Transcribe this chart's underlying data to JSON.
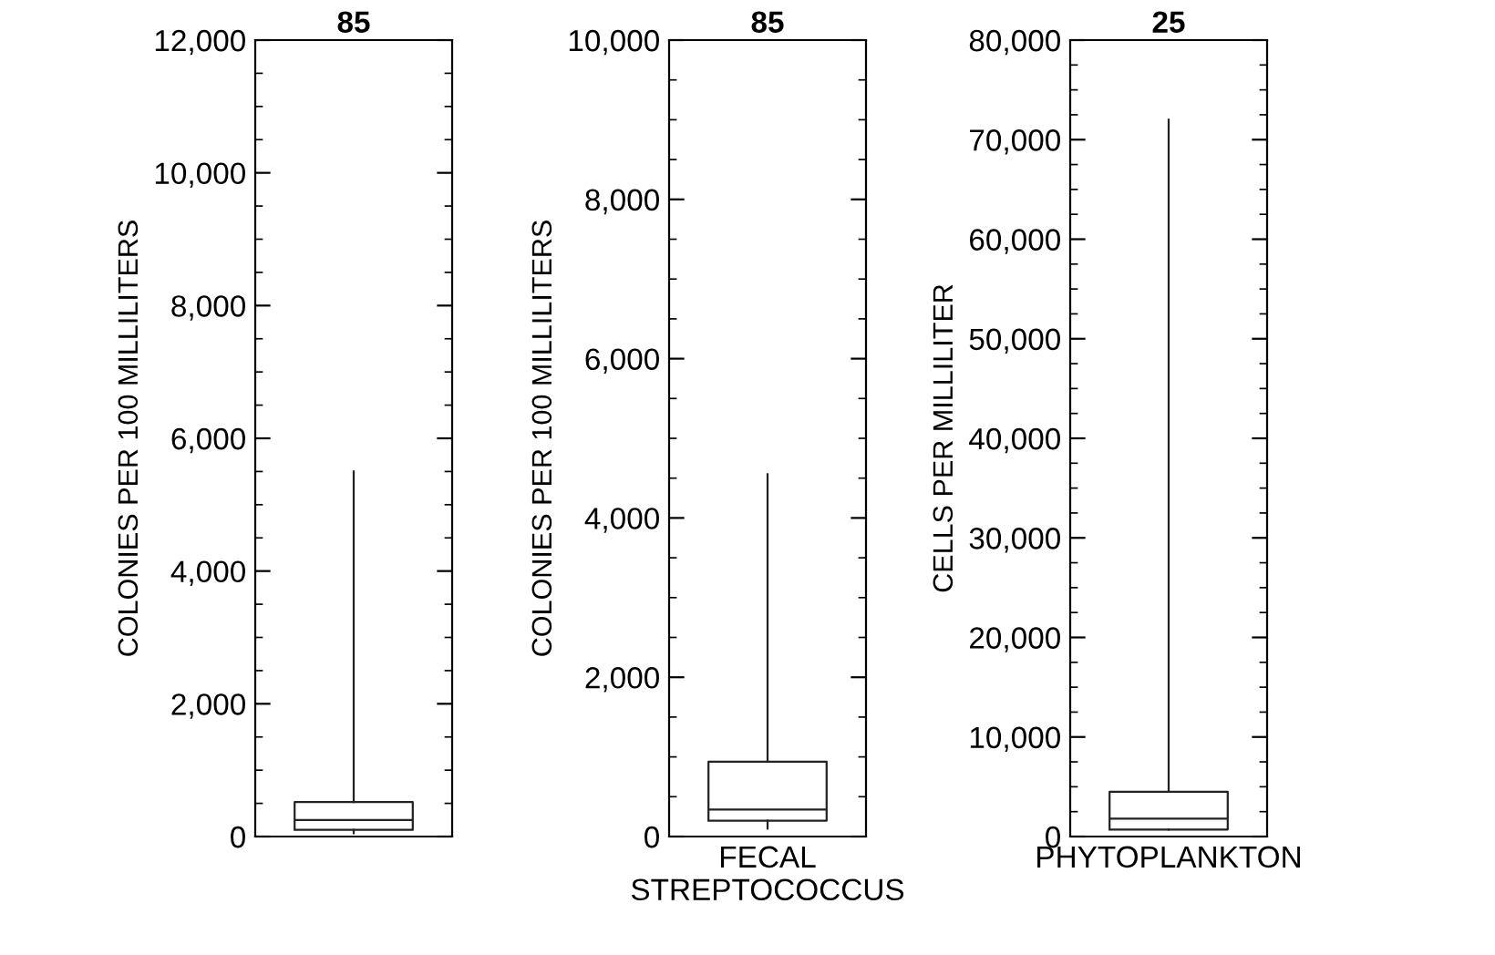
{
  "chart_data": [
    {
      "type": "box",
      "title": "85",
      "ylabel": "COLONIES PER 100 MILLILITERS",
      "categories": [
        null
      ],
      "boxes": [
        {
          "low": 50,
          "q1": 100,
          "median": 250,
          "q3": 520,
          "high": 5500
        }
      ],
      "ylim": [
        0,
        12000
      ],
      "yticks": [
        {
          "value": 0,
          "label": "0"
        },
        {
          "value": 2000,
          "label": "2,000"
        },
        {
          "value": 4000,
          "label": "4,000"
        },
        {
          "value": 6000,
          "label": "6,000"
        },
        {
          "value": 8000,
          "label": "8,000"
        },
        {
          "value": 10000,
          "label": "10,000"
        },
        {
          "value": 12000,
          "label": "12,000"
        }
      ],
      "grid": false
    },
    {
      "type": "box",
      "title": "85",
      "ylabel": "COLONIES PER 100 MILLILITERS",
      "categories": [
        "FECAL\nSTREPTOCOCCUS"
      ],
      "boxes": [
        {
          "low": 100,
          "q1": 200,
          "median": 340,
          "q3": 940,
          "high": 4550
        }
      ],
      "ylim": [
        0,
        10000
      ],
      "yticks": [
        {
          "value": 0,
          "label": "0"
        },
        {
          "value": 2000,
          "label": "2,000"
        },
        {
          "value": 4000,
          "label": "4,000"
        },
        {
          "value": 6000,
          "label": "6,000"
        },
        {
          "value": 8000,
          "label": "8,000"
        },
        {
          "value": 10000,
          "label": "10,000"
        }
      ],
      "grid": false
    },
    {
      "type": "box",
      "title": "25",
      "ylabel": "CELLS PER MILLILITER",
      "categories": [
        "PHYTOPLANKTON"
      ],
      "boxes": [
        {
          "low": 700,
          "q1": 700,
          "median": 1800,
          "q3": 4500,
          "high": 72000
        }
      ],
      "ylim": [
        0,
        80000
      ],
      "yticks": [
        {
          "value": 0,
          "label": "0"
        },
        {
          "value": 10000,
          "label": "10,000"
        },
        {
          "value": 20000,
          "label": "20,000"
        },
        {
          "value": 30000,
          "label": "30,000"
        },
        {
          "value": 40000,
          "label": "40,000"
        },
        {
          "value": 50000,
          "label": "50,000"
        },
        {
          "value": 60000,
          "label": "60,000"
        },
        {
          "value": 70000,
          "label": "70,000"
        },
        {
          "value": 80000,
          "label": "80,000"
        }
      ],
      "grid": false
    }
  ]
}
